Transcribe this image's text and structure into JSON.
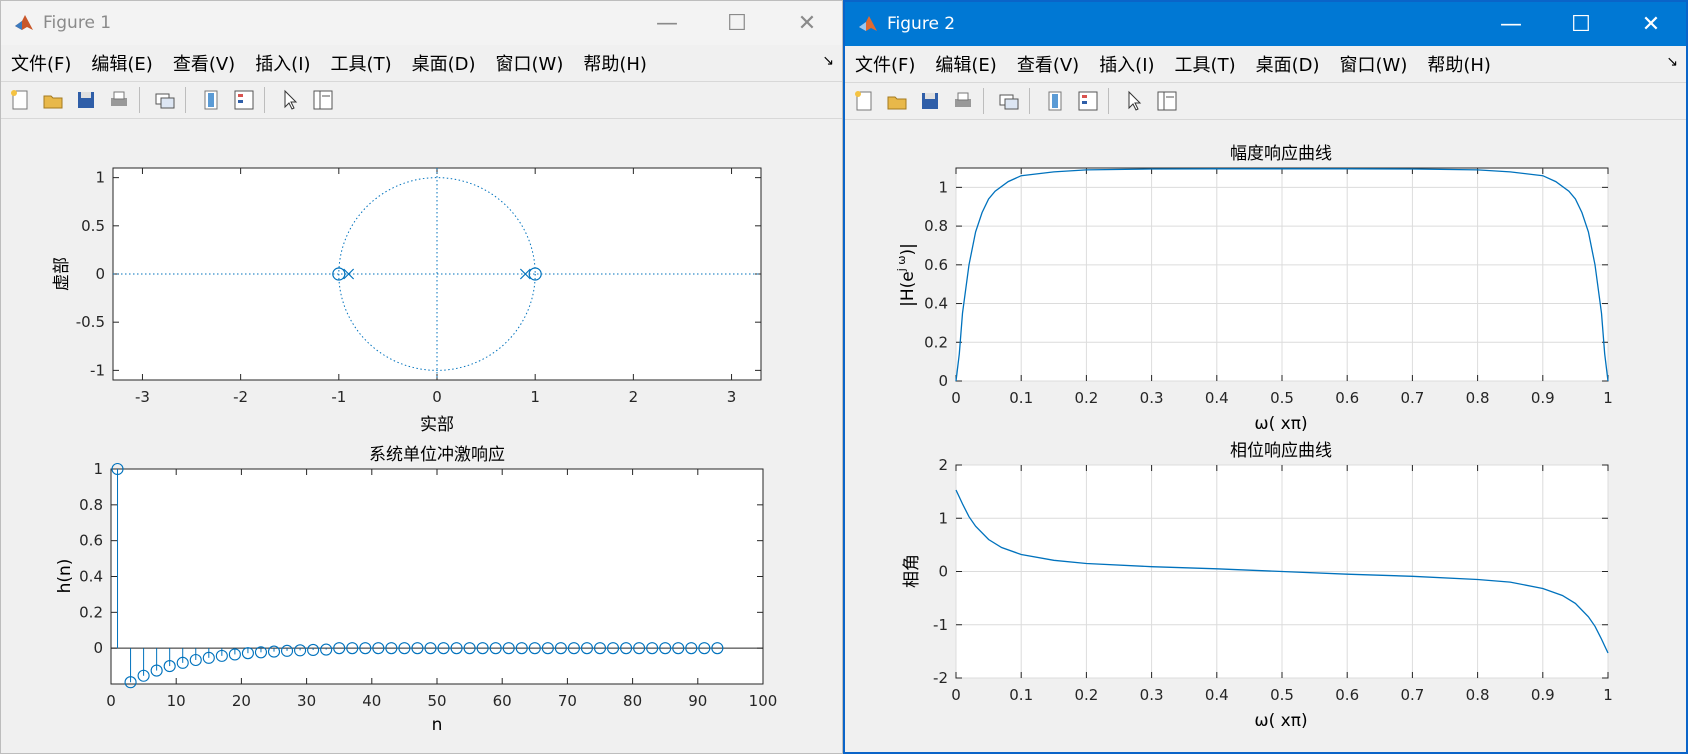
{
  "figure1": {
    "title": "Figure 1",
    "menu": [
      "文件(F)",
      "编辑(E)",
      "查看(V)",
      "插入(I)",
      "工具(T)",
      "桌面(D)",
      "窗口(W)",
      "帮助(H)"
    ],
    "zplane": {
      "xlabel": "实部",
      "ylabel": "虚部",
      "xticks": [
        "-3",
        "-2",
        "-1",
        "0",
        "1",
        "2",
        "3"
      ],
      "yticks": [
        "1",
        "0.5",
        "0",
        "-0.5",
        "-1"
      ]
    },
    "impulse": {
      "title": "系统单位冲激响应",
      "xlabel": "n",
      "ylabel": "h(n)",
      "xticks": [
        "0",
        "10",
        "20",
        "30",
        "40",
        "50",
        "60",
        "70",
        "80",
        "90",
        "100"
      ],
      "yticks": [
        "1",
        "0.8",
        "0.6",
        "0.4",
        "0.2",
        "0"
      ]
    }
  },
  "figure2": {
    "title": "Figure 2",
    "menu": [
      "文件(F)",
      "编辑(E)",
      "查看(V)",
      "插入(I)",
      "工具(T)",
      "桌面(D)",
      "窗口(W)",
      "帮助(H)"
    ],
    "magnitude": {
      "title": "幅度响应曲线",
      "xlabel": "ω( xπ)",
      "ylabel": "|H(e",
      "ylabel_sup": "j ω",
      "ylabel_end": ")|",
      "xticks": [
        "0",
        "0.1",
        "0.2",
        "0.3",
        "0.4",
        "0.5",
        "0.6",
        "0.7",
        "0.8",
        "0.9",
        "1"
      ],
      "yticks": [
        "1",
        "0.8",
        "0.6",
        "0.4",
        "0.2",
        "0"
      ]
    },
    "phase": {
      "title": "相位响应曲线",
      "xlabel": "ω( xπ)",
      "ylabel": "相角",
      "xticks": [
        "0",
        "0.1",
        "0.2",
        "0.3",
        "0.4",
        "0.5",
        "0.6",
        "0.7",
        "0.8",
        "0.9",
        "1"
      ],
      "yticks": [
        "2",
        "1",
        "0",
        "-1",
        "-2"
      ]
    }
  },
  "colors": {
    "line": "#0072bd",
    "titlebar_active": "#0078d4"
  },
  "chart_data": [
    {
      "type": "scatter",
      "name": "zplane",
      "zeros": [
        [
          -1,
          0
        ],
        [
          1,
          0
        ]
      ],
      "poles": [
        [
          -0.9,
          0
        ],
        [
          0.9,
          0
        ]
      ],
      "unit_circle": true,
      "xlim": [
        -3.3,
        3.3
      ],
      "ylim": [
        -1.1,
        1.1
      ],
      "xlabel": "实部",
      "ylabel": "虚部"
    },
    {
      "type": "stem",
      "title": "系统单位冲激响应",
      "x": [
        1,
        3,
        5,
        7,
        9,
        11,
        13,
        15,
        17,
        19,
        21,
        23,
        25,
        27,
        29,
        31,
        33,
        35,
        37,
        39,
        41,
        43,
        45,
        47,
        49,
        51,
        53,
        55,
        57,
        59,
        61,
        63,
        65,
        67,
        69,
        71,
        73,
        75,
        77,
        79,
        81,
        83,
        85,
        87,
        89,
        91,
        93
      ],
      "y_nonzero": {
        "1": 1,
        "3": -0.19,
        "5": -0.154,
        "7": -0.125,
        "9": -0.1,
        "11": -0.082,
        "13": -0.066,
        "15": -0.054,
        "17": -0.043,
        "19": -0.035,
        "21": -0.028,
        "23": -0.023,
        "25": -0.019,
        "27": -0.015,
        "29": -0.012,
        "31": -0.01,
        "33": -0.008
      },
      "xlim": [
        0,
        100
      ],
      "ylim": [
        -0.2,
        1
      ],
      "xlabel": "n",
      "ylabel": "h(n)"
    },
    {
      "type": "line",
      "title": "幅度响应曲线",
      "x": [
        0,
        0.005,
        0.01,
        0.02,
        0.03,
        0.04,
        0.05,
        0.06,
        0.08,
        0.1,
        0.15,
        0.2,
        0.3,
        0.4,
        0.5,
        0.6,
        0.7,
        0.8,
        0.85,
        0.9,
        0.92,
        0.94,
        0.95,
        0.96,
        0.97,
        0.98,
        0.99,
        0.995,
        1
      ],
      "y": [
        0,
        0.14,
        0.35,
        0.6,
        0.77,
        0.87,
        0.94,
        0.98,
        1.03,
        1.06,
        1.08,
        1.09,
        1.095,
        1.096,
        1.096,
        1.096,
        1.095,
        1.09,
        1.08,
        1.06,
        1.03,
        0.98,
        0.94,
        0.87,
        0.77,
        0.6,
        0.35,
        0.14,
        0
      ],
      "xlim": [
        0,
        1
      ],
      "ylim": [
        0,
        1.1
      ],
      "xlabel": "ω( xπ)",
      "ylabel": "|H(e^{jω})|",
      "grid": true
    },
    {
      "type": "line",
      "title": "相位响应曲线",
      "x": [
        0,
        0.005,
        0.01,
        0.02,
        0.03,
        0.05,
        0.07,
        0.1,
        0.15,
        0.2,
        0.3,
        0.4,
        0.5,
        0.6,
        0.7,
        0.8,
        0.85,
        0.9,
        0.93,
        0.95,
        0.97,
        0.98,
        0.99,
        0.995,
        1
      ],
      "y": [
        1.53,
        1.4,
        1.27,
        1.03,
        0.85,
        0.6,
        0.45,
        0.32,
        0.21,
        0.15,
        0.09,
        0.05,
        0.0,
        -0.05,
        -0.09,
        -0.15,
        -0.2,
        -0.32,
        -0.45,
        -0.6,
        -0.85,
        -1.03,
        -1.27,
        -1.4,
        -1.53
      ],
      "xlim": [
        0,
        1
      ],
      "ylim": [
        -2,
        2
      ],
      "xlabel": "ω( xπ)",
      "ylabel": "相角",
      "grid": true
    }
  ]
}
